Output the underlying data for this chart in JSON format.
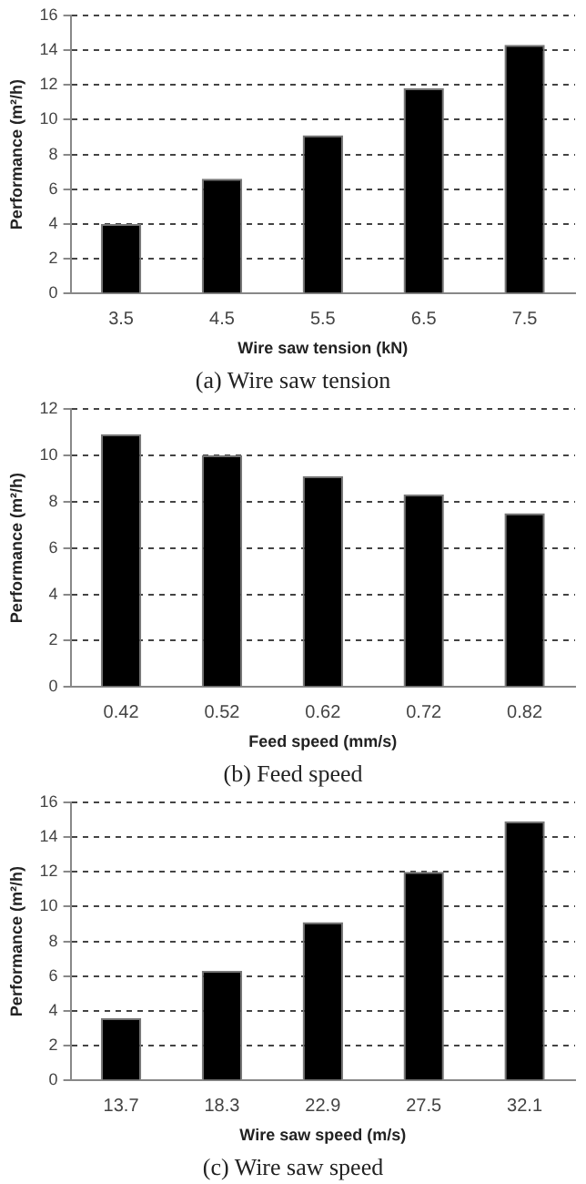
{
  "chart_data": [
    {
      "type": "bar",
      "categories": [
        "3.5",
        "4.5",
        "5.5",
        "6.5",
        "7.5"
      ],
      "values": [
        4.0,
        6.6,
        9.1,
        11.8,
        14.3
      ],
      "color": "#000000",
      "xlabel": "Wire saw tension (kN)",
      "ylabel": "Performance (m²/h)",
      "ylim": [
        0,
        16
      ],
      "yticks": [
        0,
        2,
        4,
        6,
        8,
        10,
        12,
        14,
        16
      ],
      "grid": "y",
      "annotations": [
        "(a)  Wire  saw  tension"
      ]
    },
    {
      "type": "bar",
      "categories": [
        "0.42",
        "0.52",
        "0.62",
        "0.72",
        "0.82"
      ],
      "values": [
        10.9,
        10.0,
        9.1,
        8.3,
        7.5
      ],
      "color": "#000000",
      "xlabel": "Feed speed (mm/s)",
      "ylabel": "Performance (m²/h)",
      "ylim": [
        0,
        12
      ],
      "yticks": [
        0,
        2,
        4,
        6,
        8,
        10,
        12
      ],
      "grid": "y",
      "annotations": [
        "(b)  Feed  speed"
      ]
    },
    {
      "type": "bar",
      "categories": [
        "13.7",
        "18.3",
        "22.9",
        "27.5",
        "32.1"
      ],
      "values": [
        3.6,
        6.3,
        9.1,
        12.0,
        14.9
      ],
      "color": "#000000",
      "xlabel": "Wire saw speed (m/s)",
      "ylabel": "Performance (m²/h)",
      "ylim": [
        0,
        16
      ],
      "yticks": [
        0,
        2,
        4,
        6,
        8,
        10,
        12,
        14,
        16
      ],
      "grid": "y",
      "annotations": [
        "(c)  Wire  saw  speed"
      ]
    }
  ]
}
